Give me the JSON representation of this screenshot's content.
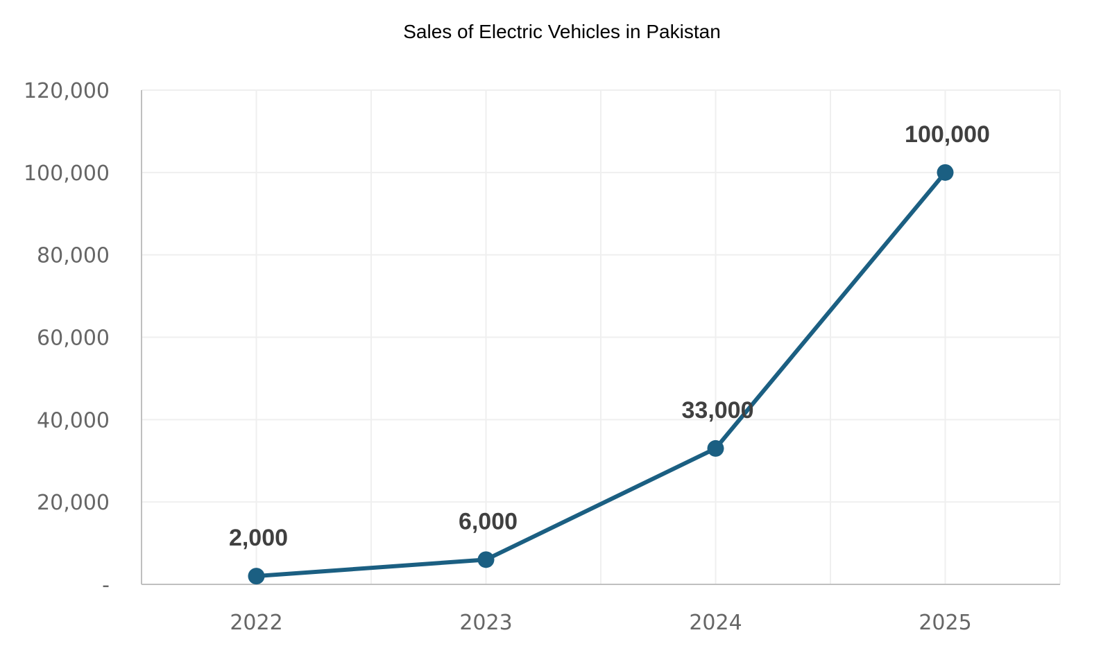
{
  "chart_data": {
    "type": "line",
    "title": "Sales of Electric Vehicles in Pakistan",
    "categories": [
      "2022",
      "2023",
      "2024",
      "2025"
    ],
    "values": [
      2000,
      6000,
      33000,
      100000
    ],
    "data_labels": [
      "2,000",
      "6,000",
      "33,000",
      "100,000"
    ],
    "y_ticks": [
      0,
      20000,
      40000,
      60000,
      80000,
      100000,
      120000
    ],
    "y_tick_labels": [
      "-",
      "20,000",
      "40,000",
      "60,000",
      "80,000",
      "100,000",
      "120,000"
    ],
    "xlabel": "",
    "ylabel": "",
    "ylim": [
      0,
      120000
    ],
    "grid": true,
    "colors": {
      "line": "#1b5f82",
      "label": "#404040",
      "axis": "#bfbfbf",
      "grid": "#efefef"
    }
  }
}
